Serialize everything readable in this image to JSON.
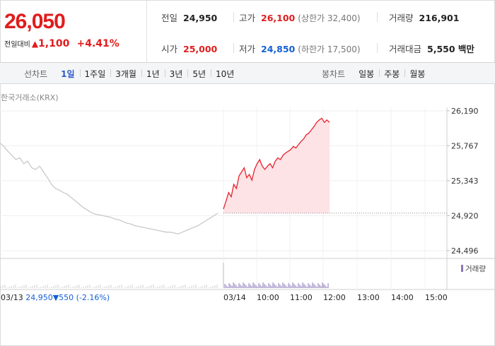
{
  "quote": {
    "price": "26,050",
    "change_label": "전일대비",
    "change_arrow": "▲",
    "change_amount": "1,100",
    "change_pct": "+4.41%",
    "stats": {
      "prev_close": {
        "label": "전일",
        "value": "24,950"
      },
      "high": {
        "label": "고가",
        "value": "26,100",
        "limit_label": "상한가",
        "limit_value": "32,400"
      },
      "volume": {
        "label": "거래량",
        "value": "216,901"
      },
      "open": {
        "label": "시가",
        "value": "25,000"
      },
      "low": {
        "label": "저가",
        "value": "24,850",
        "limit_label": "하한가",
        "limit_value": "17,500"
      },
      "amount": {
        "label": "거래대금",
        "value": "5,550 백만"
      }
    }
  },
  "toolbar": {
    "line_title": "선차트",
    "line_periods": [
      "1일",
      "1주일",
      "3개월",
      "1년",
      "3년",
      "5년",
      "10년"
    ],
    "candle_title": "봉차트",
    "candle_periods": [
      "일봉",
      "주봉",
      "월봉"
    ]
  },
  "chart_source": "한국거래소(KRX)",
  "volume_legend": "거래량",
  "prev_day_info": {
    "date": "03/13",
    "close": "24,950",
    "arrow": "▼",
    "change": "550",
    "pct": "(-2.16%)"
  },
  "chart_data": {
    "type": "line",
    "y_ticks": [
      "26,190",
      "25,767",
      "25,343",
      "24,920",
      "24,496"
    ],
    "ylim": [
      24496,
      26190
    ],
    "x_ticks": [
      "03/13",
      "03/14",
      "10:00",
      "11:00",
      "12:00",
      "13:00",
      "14:00",
      "15:00"
    ],
    "reference_price": 24950,
    "series": [
      {
        "values_prev_day": [
          25800,
          25760,
          25700,
          25650,
          25600,
          25620,
          25550,
          25580,
          25500,
          25480,
          25520,
          25450,
          25380,
          25300,
          25250,
          25230,
          25200,
          25180,
          25140,
          25100,
          25060,
          25020,
          24990,
          24960,
          24940,
          24930,
          24920,
          24910,
          24900,
          24880,
          24870,
          24850,
          24830,
          24820,
          24800,
          24790,
          24780,
          24770,
          24760,
          24750,
          24740,
          24730,
          24720,
          24720,
          24710,
          24700,
          24720,
          24740,
          24760,
          24780,
          24800,
          24830,
          24860,
          24890,
          24920,
          24950
        ],
        "values_today": [
          25000,
          25100,
          25200,
          25150,
          25300,
          25250,
          25400,
          25450,
          25500,
          25380,
          25420,
          25350,
          25480,
          25550,
          25600,
          25520,
          25480,
          25520,
          25550,
          25500,
          25580,
          25620,
          25600,
          25650,
          25680,
          25700,
          25720,
          25760,
          25740,
          25780,
          25820,
          25850,
          25900,
          25920,
          25960,
          26000,
          26050,
          26080,
          26100,
          26050,
          26080,
          26050
        ]
      }
    ]
  }
}
